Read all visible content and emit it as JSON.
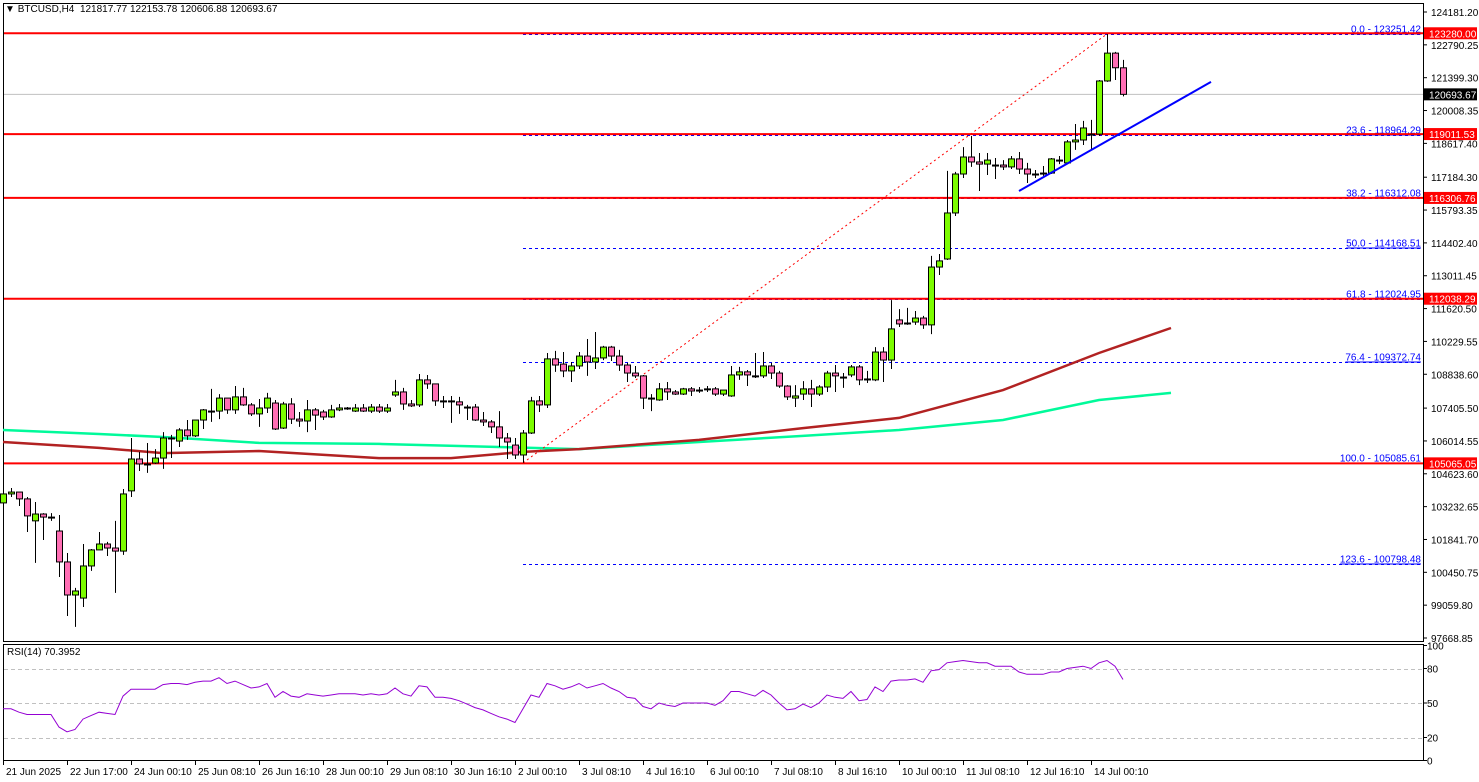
{
  "header": {
    "arrow": "▼",
    "symbol": "BTCUSD,H4",
    "open": "121817.77",
    "high": "122153.78",
    "low": "120606.88",
    "close": "120693.67"
  },
  "rsi_label": "RSI(14) 70.3952",
  "colors": {
    "bull": "#7cfc00",
    "bear": "#ff6eb4",
    "ma_fast": "#b22222",
    "ma_slow": "#00fa9a",
    "level": "#ff0000",
    "fib": "#0000ff",
    "rsi": "#9400d3",
    "trendline": "#0000ff"
  },
  "chart_data": {
    "type": "candlestick",
    "symbol": "BTCUSD",
    "timeframe": "H4",
    "ylim": [
      97668.85,
      124181.2
    ],
    "y_ticks": [
      "124181.20",
      "122790.25",
      "121399.30",
      "120008.35",
      "118617.40",
      "117184.30",
      "115793.35",
      "114402.40",
      "113011.45",
      "111620.50",
      "110229.55",
      "108838.60",
      "107405.50",
      "106014.55",
      "104623.60",
      "103232.65",
      "101841.70",
      "100450.75",
      "99059.80",
      "97668.85"
    ],
    "x_ticks": [
      "21 Jun 2025",
      "22 Jun 17:00",
      "24 Jun 00:10",
      "25 Jun 08:10",
      "26 Jun 16:10",
      "28 Jun 00:10",
      "29 Jun 08:10",
      "30 Jun 16:10",
      "2 Jul 00:10",
      "3 Jul 08:10",
      "4 Jul 16:10",
      "6 Jul 00:10",
      "7 Jul 08:10",
      "8 Jul 16:10",
      "10 Jul 00:10",
      "11 Jul 08:10",
      "12 Jul 16:10",
      "14 Jul 00:10"
    ],
    "candles_ohlc": [
      [
        103390,
        103850,
        103350,
        103770
      ],
      [
        103770,
        104020,
        103640,
        103850
      ],
      [
        103850,
        103850,
        103260,
        103560
      ],
      [
        103560,
        103640,
        102160,
        102840
      ],
      [
        102630,
        103430,
        100850,
        102920
      ],
      [
        102920,
        102960,
        101820,
        102790
      ],
      [
        102790,
        102960,
        102630,
        102790
      ],
      [
        102200,
        102880,
        100250,
        100890
      ],
      [
        100890,
        101270,
        98600,
        99490
      ],
      [
        99490,
        99790,
        98140,
        99660
      ],
      [
        99360,
        101650,
        98980,
        100720
      ],
      [
        100720,
        101440,
        100510,
        101400
      ],
      [
        101400,
        102160,
        101400,
        101650
      ],
      [
        101650,
        101740,
        101140,
        101480
      ],
      [
        101480,
        102630,
        99580,
        101350
      ],
      [
        101350,
        103980,
        101190,
        103770
      ],
      [
        103900,
        106140,
        103640,
        105250
      ],
      [
        105250,
        105550,
        104740,
        105040
      ],
      [
        105040,
        105930,
        104660,
        105040
      ],
      [
        105080,
        105670,
        105040,
        105290
      ],
      [
        105290,
        106390,
        104830,
        106140
      ],
      [
        106140,
        106270,
        105290,
        106140
      ],
      [
        106010,
        106560,
        105760,
        106480
      ],
      [
        106480,
        106900,
        106060,
        106230
      ],
      [
        106230,
        106900,
        106180,
        106900
      ],
      [
        106900,
        107370,
        106520,
        107330
      ],
      [
        107280,
        108220,
        106820,
        107280
      ],
      [
        107280,
        108000,
        106940,
        107830
      ],
      [
        107830,
        107830,
        107160,
        107330
      ],
      [
        107330,
        108340,
        107160,
        107880
      ],
      [
        107880,
        108260,
        107500,
        107540
      ],
      [
        107540,
        107620,
        107070,
        107160
      ],
      [
        107160,
        107790,
        106610,
        107410
      ],
      [
        107410,
        108050,
        107200,
        107830
      ],
      [
        107620,
        107750,
        106480,
        106520
      ],
      [
        106560,
        107670,
        106520,
        107580
      ],
      [
        107580,
        107830,
        106730,
        106940
      ],
      [
        106940,
        107240,
        106610,
        106860
      ],
      [
        106860,
        107750,
        106390,
        107330
      ],
      [
        107330,
        107410,
        106480,
        107110
      ],
      [
        107240,
        107330,
        106900,
        107030
      ],
      [
        107030,
        107540,
        106990,
        107330
      ],
      [
        107330,
        107580,
        107280,
        107410
      ],
      [
        107410,
        107450,
        107330,
        107410
      ],
      [
        107280,
        107580,
        107240,
        107410
      ],
      [
        107410,
        107580,
        107240,
        107280
      ],
      [
        107280,
        107580,
        107200,
        107450
      ],
      [
        107450,
        107580,
        107200,
        107280
      ],
      [
        107280,
        107580,
        107200,
        107410
      ],
      [
        107960,
        108600,
        107880,
        108090
      ],
      [
        108090,
        108260,
        107330,
        107580
      ],
      [
        107580,
        107750,
        107450,
        107500
      ],
      [
        107540,
        108850,
        107450,
        108600
      ],
      [
        108600,
        108810,
        108220,
        108430
      ],
      [
        108430,
        108430,
        107500,
        107710
      ],
      [
        107710,
        107920,
        107410,
        107710
      ],
      [
        107710,
        107920,
        106780,
        107670
      ],
      [
        107670,
        107880,
        107160,
        107540
      ],
      [
        107450,
        107540,
        106900,
        107450
      ],
      [
        107450,
        107580,
        106860,
        106900
      ],
      [
        106900,
        107240,
        106650,
        106820
      ],
      [
        106820,
        106900,
        106350,
        106610
      ],
      [
        106610,
        107280,
        105760,
        106140
      ],
      [
        106140,
        106350,
        105250,
        105970
      ],
      [
        105840,
        106140,
        105250,
        105420
      ],
      [
        105420,
        106480,
        105090,
        106350
      ],
      [
        106350,
        107880,
        106310,
        107710
      ],
      [
        107710,
        107920,
        107240,
        107540
      ],
      [
        107540,
        109740,
        107410,
        109490
      ],
      [
        109490,
        109830,
        108940,
        109230
      ],
      [
        109270,
        109780,
        108720,
        108980
      ],
      [
        108980,
        109360,
        108510,
        109190
      ],
      [
        109190,
        109780,
        109060,
        109610
      ],
      [
        109610,
        110330,
        108770,
        109360
      ],
      [
        109360,
        110630,
        109060,
        109530
      ],
      [
        109530,
        110040,
        109440,
        109990
      ],
      [
        109990,
        110040,
        109400,
        109610
      ],
      [
        109610,
        109870,
        108980,
        109230
      ],
      [
        109230,
        109320,
        108510,
        108890
      ],
      [
        108890,
        109190,
        108680,
        108770
      ],
      [
        108770,
        108810,
        107370,
        107830
      ],
      [
        107830,
        108000,
        107280,
        107830
      ],
      [
        107750,
        108470,
        107710,
        108220
      ],
      [
        108220,
        108510,
        107750,
        108090
      ],
      [
        108090,
        108170,
        107960,
        108000
      ],
      [
        108000,
        108260,
        107960,
        108220
      ],
      [
        108220,
        108300,
        107920,
        108130
      ],
      [
        108170,
        108300,
        108050,
        108130
      ],
      [
        108220,
        108340,
        108090,
        108220
      ],
      [
        108220,
        108300,
        107920,
        108000
      ],
      [
        108000,
        108170,
        107920,
        108170
      ],
      [
        107920,
        109190,
        107880,
        108810
      ],
      [
        108810,
        109150,
        108600,
        108940
      ],
      [
        108940,
        109020,
        108340,
        108810
      ],
      [
        108770,
        109740,
        108680,
        108770
      ],
      [
        108770,
        109780,
        108680,
        109190
      ],
      [
        109190,
        109320,
        108640,
        108890
      ],
      [
        108890,
        108980,
        108260,
        108340
      ],
      [
        108340,
        108380,
        107750,
        107880
      ],
      [
        107830,
        108380,
        107450,
        107920
      ],
      [
        108000,
        108550,
        107750,
        108220
      ],
      [
        108220,
        108600,
        107450,
        108000
      ],
      [
        108000,
        108380,
        107920,
        108300
      ],
      [
        108300,
        108980,
        108090,
        108890
      ],
      [
        108890,
        109230,
        108090,
        108770
      ],
      [
        108720,
        108890,
        108260,
        108720
      ],
      [
        108810,
        109230,
        108720,
        109150
      ],
      [
        109150,
        109230,
        108380,
        108600
      ],
      [
        108600,
        108980,
        108470,
        108640
      ],
      [
        108600,
        109990,
        108550,
        109780
      ],
      [
        109780,
        109990,
        108510,
        109440
      ],
      [
        109440,
        111980,
        109060,
        110760
      ],
      [
        111140,
        111600,
        110840,
        110970
      ],
      [
        111010,
        111650,
        110930,
        111010
      ],
      [
        111050,
        111520,
        110930,
        111220
      ],
      [
        111220,
        111310,
        110760,
        110930
      ],
      [
        110930,
        113850,
        110540,
        113380
      ],
      [
        113380,
        113930,
        113040,
        113640
      ],
      [
        113720,
        117450,
        113680,
        115670
      ],
      [
        115670,
        117410,
        115540,
        117320
      ],
      [
        117320,
        118460,
        117150,
        118040
      ],
      [
        118040,
        118930,
        117620,
        117830
      ],
      [
        117830,
        118210,
        116600,
        117740
      ],
      [
        117740,
        118210,
        117280,
        117910
      ],
      [
        117700,
        118000,
        117110,
        117700
      ],
      [
        117700,
        117910,
        117490,
        117620
      ],
      [
        117620,
        118080,
        117530,
        117960
      ],
      [
        117960,
        118250,
        117320,
        117530
      ],
      [
        117530,
        117790,
        116940,
        117320
      ],
      [
        117320,
        117490,
        117150,
        117320
      ],
      [
        117360,
        117660,
        117240,
        117360
      ],
      [
        117360,
        118000,
        117320,
        117960
      ],
      [
        117910,
        118080,
        117740,
        117910
      ],
      [
        117790,
        118760,
        117740,
        118680
      ],
      [
        118680,
        119440,
        118340,
        118760
      ],
      [
        118760,
        119570,
        118550,
        119270
      ],
      [
        119010,
        119610,
        118380,
        119010
      ],
      [
        119010,
        121300,
        118930,
        121260
      ],
      [
        121260,
        123250,
        121220,
        122440
      ],
      [
        122440,
        122490,
        121300,
        121820
      ],
      [
        121817.77,
        122153.78,
        120606.88,
        120693.67
      ]
    ],
    "moving_averages": [
      {
        "color": "#00fa9a",
        "points_bar_price": [
          [
            0,
            106480
          ],
          [
            12,
            106310
          ],
          [
            20,
            106180
          ],
          [
            32,
            105930
          ],
          [
            47,
            105890
          ],
          [
            62,
            105760
          ],
          [
            72,
            105670
          ],
          [
            87,
            105970
          ],
          [
            100,
            106230
          ],
          [
            112,
            106480
          ],
          [
            125,
            106900
          ],
          [
            137,
            107750
          ],
          [
            146,
            108050
          ]
        ]
      },
      {
        "color": "#b22222",
        "points_bar_price": [
          [
            0,
            105970
          ],
          [
            12,
            105720
          ],
          [
            20,
            105500
          ],
          [
            32,
            105590
          ],
          [
            47,
            105290
          ],
          [
            56,
            105290
          ],
          [
            65,
            105550
          ],
          [
            72,
            105670
          ],
          [
            87,
            106060
          ],
          [
            100,
            106560
          ],
          [
            112,
            106990
          ],
          [
            125,
            108170
          ],
          [
            137,
            109740
          ],
          [
            146,
            110800
          ]
        ]
      }
    ],
    "horizontal_levels": [
      {
        "price": 123280.0,
        "label": "123280.00"
      },
      {
        "price": 119011.53,
        "label": "119011.53"
      },
      {
        "price": 116306.76,
        "label": "116306.76"
      },
      {
        "price": 112038.29,
        "label": "112038.29"
      },
      {
        "price": 105065.05,
        "label": "105065.05"
      }
    ],
    "current_price": {
      "price": 120693.67,
      "label": "120693.67"
    },
    "fibonacci": {
      "from": {
        "bar": 65,
        "price": 105085.61
      },
      "to": {
        "bar": 138,
        "price": 123251.42
      },
      "levels": [
        {
          "price": 123251.42,
          "label": "0.0 - 123251.42"
        },
        {
          "price": 118964.29,
          "label": "23.6 - 118964.29"
        },
        {
          "price": 116312.08,
          "label": "38.2 - 116312.08"
        },
        {
          "price": 114168.51,
          "label": "50.0 - 114168.51"
        },
        {
          "price": 112024.95,
          "label": "61.8 - 112024.95"
        },
        {
          "price": 109372.74,
          "label": "76.4 - 109372.74"
        },
        {
          "price": 105085.61,
          "label": "100.0 - 105085.61"
        },
        {
          "price": 100798.48,
          "label": "123.6 - 100798.48"
        }
      ]
    },
    "trendline": {
      "from": {
        "bar": 127,
        "price": 116600
      },
      "to": {
        "bar": 151,
        "price": 121220
      }
    },
    "rsi": {
      "period": 14,
      "ylim": [
        0,
        100
      ],
      "levels": [
        80,
        50,
        20
      ],
      "y_ticks": [
        "100",
        "80",
        "50",
        "20",
        "0"
      ],
      "values": [
        45,
        45,
        42,
        40,
        40,
        40,
        40,
        29,
        25,
        27,
        36,
        39,
        42,
        41,
        40,
        56,
        62,
        62,
        62,
        62,
        66,
        67,
        67,
        66,
        68,
        69,
        69,
        72,
        67,
        69,
        66,
        63,
        64,
        67,
        55,
        60,
        56,
        55,
        58,
        57,
        56,
        57,
        58,
        58,
        58,
        57,
        58,
        57,
        58,
        63,
        58,
        56,
        65,
        64,
        55,
        55,
        54,
        52,
        49,
        46,
        44,
        41,
        38,
        36,
        33,
        45,
        57,
        55,
        67,
        65,
        62,
        64,
        67,
        63,
        65,
        67,
        63,
        60,
        55,
        54,
        47,
        45,
        50,
        48,
        47,
        50,
        50,
        50,
        50,
        48,
        52,
        60,
        60,
        58,
        56,
        61,
        57,
        50,
        44,
        45,
        49,
        46,
        50,
        57,
        55,
        54,
        60,
        52,
        53,
        64,
        60,
        69,
        70,
        70,
        71,
        68,
        78,
        79,
        85,
        86,
        87,
        86,
        85,
        85,
        82,
        82,
        82,
        77,
        75,
        75,
        75,
        77,
        77,
        80,
        81,
        82,
        80,
        85,
        87,
        82,
        70.4
      ]
    }
  }
}
